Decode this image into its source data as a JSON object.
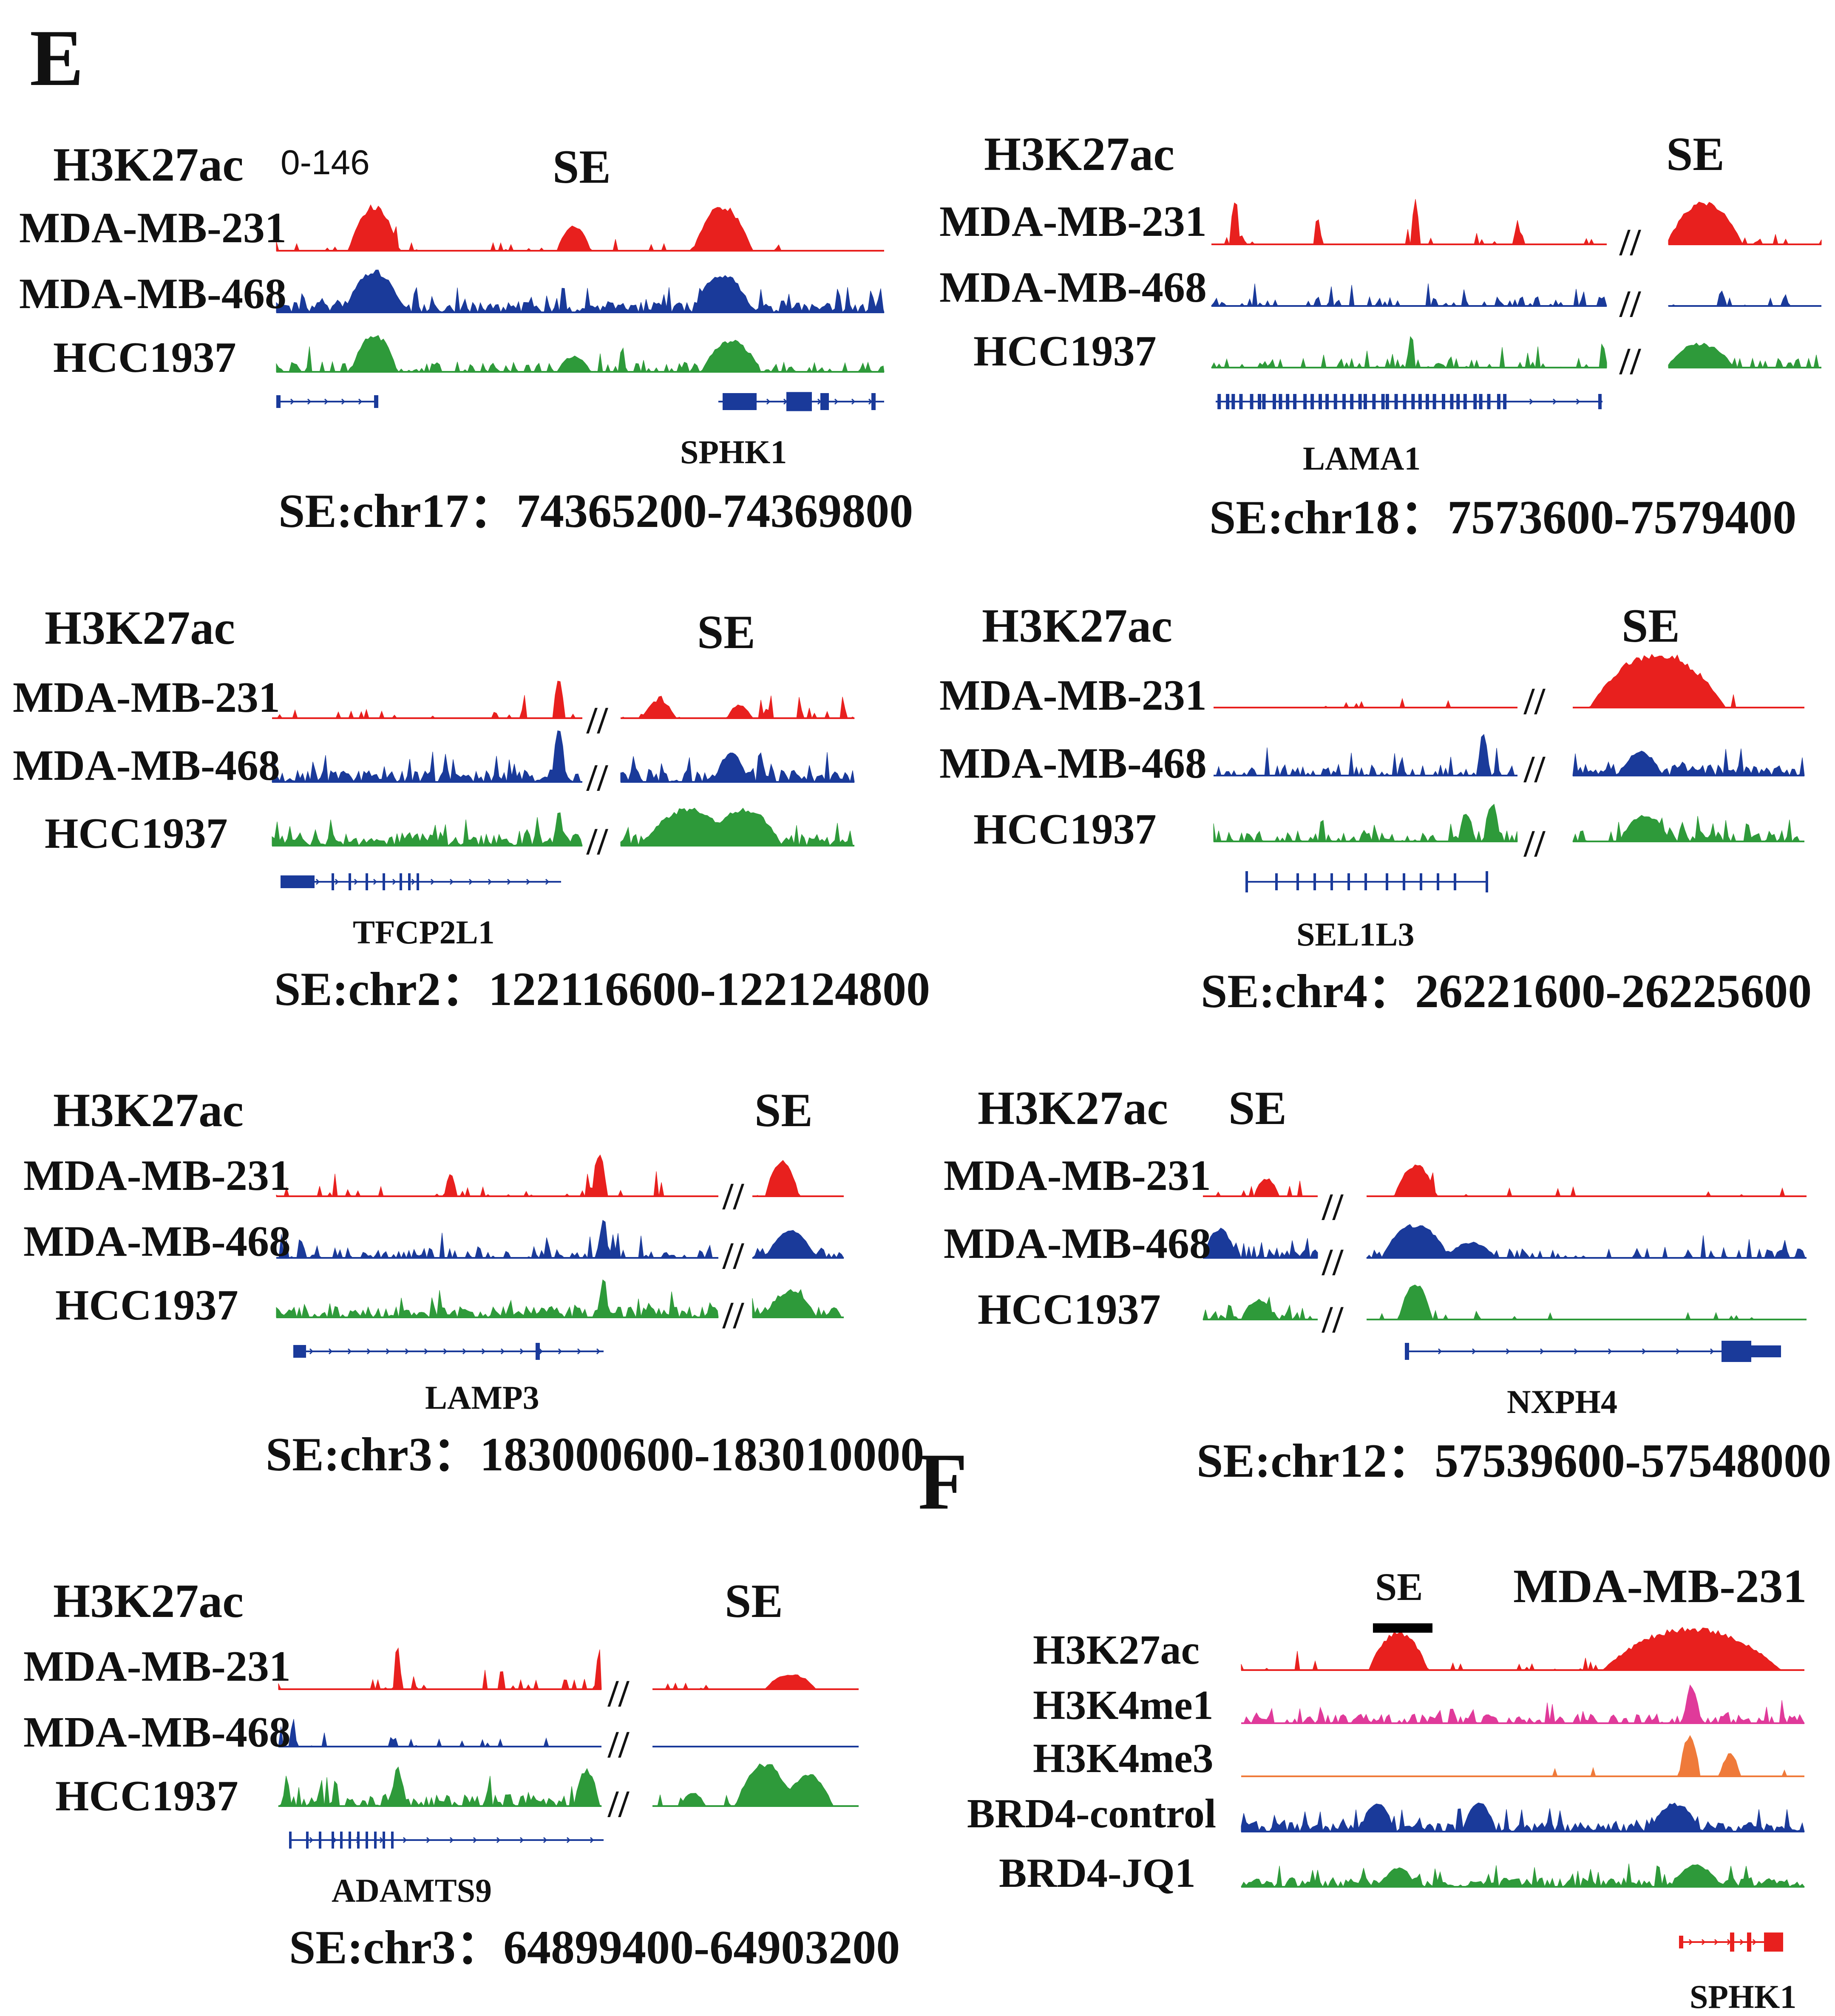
{
  "figure": {
    "panel_e_letter": "E",
    "panel_f_letter": "F",
    "colors": {
      "red": "#e8201e",
      "blue": "#1a3a9a",
      "green": "#2e9a3a",
      "pink": "#e03a9a",
      "orange": "#ef7a3a",
      "gene_blue": "#1a3a9a",
      "gene_red": "#e8201e"
    },
    "panels": [
      {
        "header": "H3K27ac",
        "se_label": "SE",
        "scale": "0-146",
        "rows": [
          "MDA-MB-231",
          "MDA-MB-468",
          "HCC1937"
        ],
        "gene": "SPHK1",
        "coord": "SE:chr17：74365200-74369800"
      },
      {
        "header": "H3K27ac",
        "se_label": "SE",
        "rows": [
          "MDA-MB-231",
          "MDA-MB-468",
          "HCC1937"
        ],
        "gene": "LAMA1",
        "coord": "SE:chr18：7573600-7579400"
      },
      {
        "header": "H3K27ac",
        "se_label": "SE",
        "rows": [
          "MDA-MB-231",
          "MDA-MB-468",
          "HCC1937"
        ],
        "gene": "TFCP2L1",
        "coord": "SE:chr2：122116600-122124800"
      },
      {
        "header": "H3K27ac",
        "se_label": "SE",
        "rows": [
          "MDA-MB-231",
          "MDA-MB-468",
          "HCC1937"
        ],
        "gene": "SEL1L3",
        "coord": "SE:chr4：26221600-26225600"
      },
      {
        "header": "H3K27ac",
        "se_label": "SE",
        "rows": [
          "MDA-MB-231",
          "MDA-MB-468",
          "HCC1937"
        ],
        "gene": "LAMP3",
        "coord": "SE:chr3：183000600-183010000"
      },
      {
        "header": "H3K27ac",
        "se_label": "SE",
        "rows": [
          "MDA-MB-231",
          "MDA-MB-468",
          "HCC1937"
        ],
        "gene": "NXPH4",
        "coord": "SE:chr12：57539600-57548000"
      },
      {
        "header": "H3K27ac",
        "se_label": "SE",
        "rows": [
          "MDA-MB-231",
          "MDA-MB-468",
          "HCC1937"
        ],
        "gene": "ADAMTS9",
        "coord": "SE:chr3：64899400-64903200"
      }
    ],
    "panel_f": {
      "se_label": "SE",
      "cell_line": "MDA-MB-231",
      "rows": [
        "H3K27ac",
        "H3K4me1",
        "H3K4me3",
        "BRD4-control",
        "BRD4-JQ1"
      ],
      "gene": "SPHK1"
    }
  }
}
